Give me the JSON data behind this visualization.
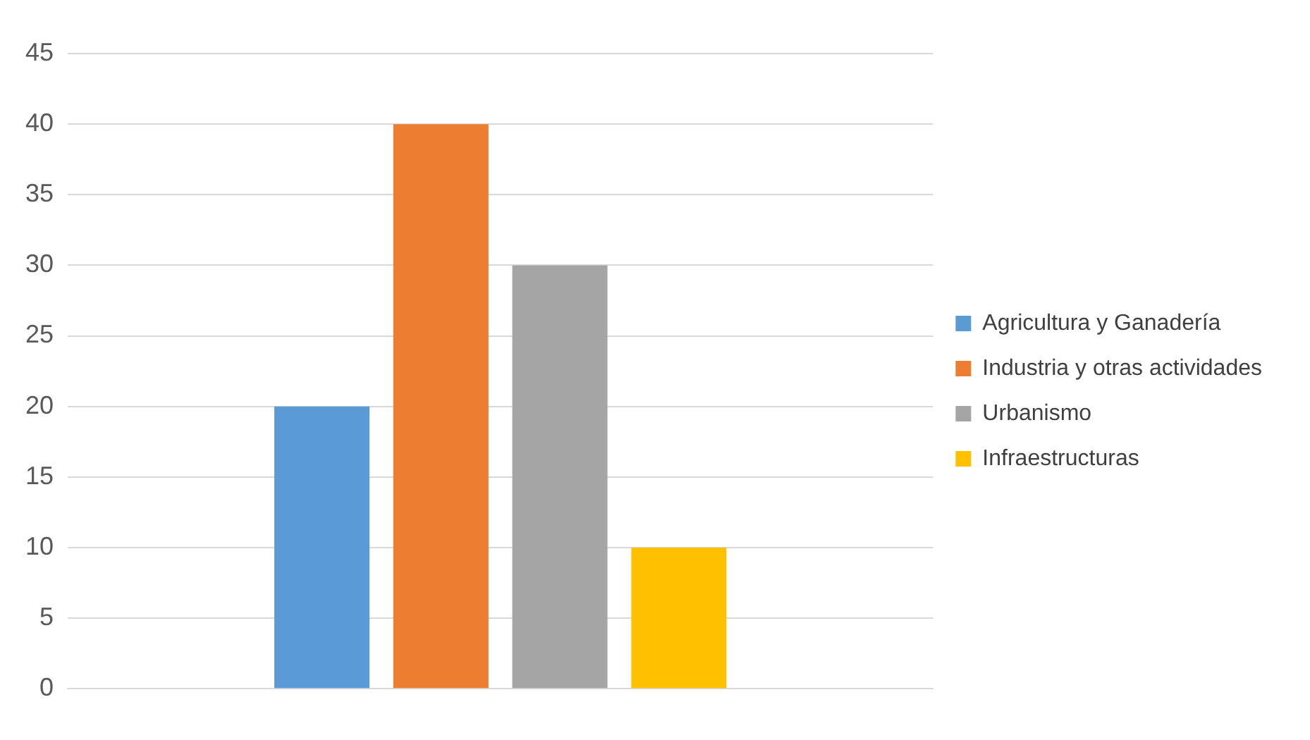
{
  "chart_data": {
    "type": "bar",
    "categories": [
      null
    ],
    "series": [
      {
        "name": "Agricultura y Ganadería",
        "color": "#5b9bd5",
        "values": [
          20
        ]
      },
      {
        "name": "Industria y otras actividades",
        "color": "#ed7d31",
        "values": [
          40
        ]
      },
      {
        "name": "Urbanismo",
        "color": "#a5a5a5",
        "values": [
          30
        ]
      },
      {
        "name": "Infraestructuras",
        "color": "#ffc000",
        "values": [
          10
        ]
      }
    ],
    "ylim": [
      0,
      45
    ],
    "yticks": [
      0,
      5,
      10,
      15,
      20,
      25,
      30,
      35,
      40,
      45
    ],
    "grid": "y",
    "legend": "right"
  }
}
